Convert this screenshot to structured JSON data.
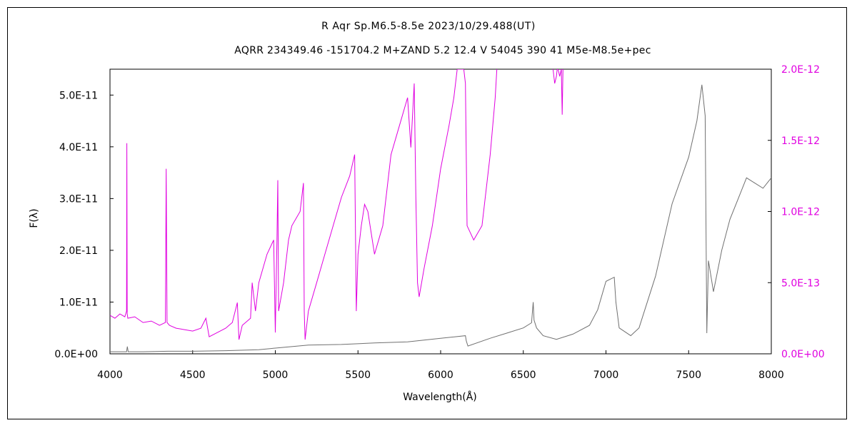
{
  "chart_data": {
    "type": "line",
    "title": "R Aqr  Sp.M6.5-8.5e  2023/10/29.488(UT)",
    "subtitle": "AQRR 234349.46 -151704.2 M+ZAND 5.2 12.4 V 54045 390 41 M5e-M8.5e+pec",
    "xlabel": "Wavelength(Å)",
    "ylabel": "F(λ)",
    "xlim": [
      4000,
      8000
    ],
    "ylim_left": [
      0,
      5.5e-11
    ],
    "ylim_right": [
      0,
      2e-12
    ],
    "xticks": [
      "4000",
      "4500",
      "5000",
      "5500",
      "6000",
      "6500",
      "7000",
      "7500",
      "8000"
    ],
    "yticks_left": [
      "0.0E+00",
      "1.0E-11",
      "2.0E-11",
      "3.0E-11",
      "4.0E-11",
      "5.0E-11"
    ],
    "yticks_right": [
      "0.0E+00",
      "5.0E-13",
      "1.0E-12",
      "1.5E-12",
      "2.0E-12"
    ],
    "grid": false,
    "colors": {
      "left_series": "#707070",
      "right_series": "#e000e0",
      "right_axis": "#e000e0"
    },
    "series": [
      {
        "axis": "left",
        "x": [
          4000,
          4100,
          4105,
          4110,
          4200,
          4350,
          4500,
          4700,
          4900,
          5000,
          5200,
          5400,
          5600,
          5800,
          6000,
          6150,
          6155,
          6165,
          6300,
          6400,
          6500,
          6550,
          6560,
          6565,
          6580,
          6620,
          6700,
          6800,
          6900,
          6950,
          7000,
          7050,
          7060,
          7080,
          7150,
          7200,
          7300,
          7400,
          7500,
          7550,
          7580,
          7600,
          7610,
          7620,
          7650,
          7700,
          7750,
          7800,
          7850,
          7900,
          7950,
          8000
        ],
        "y": [
          4e-13,
          4e-13,
          1.4e-12,
          4e-13,
          4e-13,
          5e-13,
          5e-13,
          6e-13,
          8e-13,
          1.1e-12,
          1.7e-12,
          1.8e-12,
          2.1e-12,
          2.3e-12,
          3e-12,
          3.5e-12,
          2.5e-12,
          1.5e-12,
          3e-12,
          4e-12,
          5e-12,
          6e-12,
          1e-11,
          6.5e-12,
          5e-12,
          3.5e-12,
          2.8e-12,
          3.8e-12,
          5.5e-12,
          8.5e-12,
          1.4e-11,
          1.48e-11,
          1e-11,
          5e-12,
          3.5e-12,
          5e-12,
          1.5e-11,
          2.9e-11,
          3.8e-11,
          4.5e-11,
          5.2e-11,
          4.6e-11,
          4e-12,
          1.8e-11,
          1.2e-11,
          2e-11,
          2.6e-11,
          3e-11,
          3.4e-11,
          3.3e-11,
          3.2e-11,
          3.4e-11
        ]
      },
      {
        "axis": "right",
        "x": [
          4000,
          4030,
          4060,
          4090,
          4100,
          4102,
          4104,
          4108,
          4150,
          4200,
          4250,
          4300,
          4335,
          4340,
          4345,
          4360,
          4400,
          4450,
          4500,
          4550,
          4580,
          4600,
          4650,
          4700,
          4740,
          4770,
          4780,
          4800,
          4850,
          4860,
          4880,
          4900,
          4950,
          4990,
          5000,
          5010,
          5015,
          5020,
          5050,
          5080,
          5100,
          5150,
          5170,
          5175,
          5180,
          5200,
          5250,
          5300,
          5350,
          5400,
          5450,
          5480,
          5490,
          5500,
          5520,
          5540,
          5560,
          5600,
          5650,
          5680,
          5700,
          5750,
          5800,
          5820,
          5840,
          5850,
          5860,
          5870,
          5900,
          5950,
          6000,
          6050,
          6080,
          6100,
          6120,
          6140,
          6150,
          6160,
          6200,
          6250,
          6300,
          6330,
          6340
        ],
        "y": [
          2.7e-13,
          2.5e-13,
          2.8e-13,
          2.6e-13,
          3e-13,
          1.48e-12,
          2.8e-13,
          2.5e-13,
          2.6e-13,
          2.2e-13,
          2.3e-13,
          2e-13,
          2.2e-13,
          1.3e-12,
          2.2e-13,
          2e-13,
          1.8e-13,
          1.7e-13,
          1.6e-13,
          1.8e-13,
          2.5e-13,
          1.2e-13,
          1.5e-13,
          1.8e-13,
          2.2e-13,
          3.6e-13,
          1e-13,
          2e-13,
          2.5e-13,
          5e-13,
          3e-13,
          5e-13,
          7e-13,
          8e-13,
          1.5e-13,
          8e-13,
          1.22e-12,
          3e-13,
          5e-13,
          8e-13,
          9e-13,
          1e-12,
          1.2e-12,
          3e-13,
          1e-13,
          3e-13,
          5e-13,
          7e-13,
          9e-13,
          1.1e-12,
          1.25e-12,
          1.4e-12,
          3e-13,
          7e-13,
          9e-13,
          1.05e-12,
          1e-12,
          7e-13,
          9e-13,
          1.2e-12,
          1.4e-12,
          1.6e-12,
          1.8e-12,
          1.45e-12,
          1.9e-12,
          1.1e-12,
          5e-13,
          4e-13,
          6e-13,
          9e-13,
          1.3e-12,
          1.6e-12,
          1.8e-12,
          2e-12,
          2e-12,
          2e-12,
          1.9e-12,
          9e-13,
          8e-13,
          9e-13,
          1.4e-12,
          1.8e-12,
          2e-12
        ]
      },
      {
        "axis": "right",
        "x": [
          6680,
          6690,
          6700,
          6705,
          6710,
          6720,
          6730,
          6735,
          6740
        ],
        "y": [
          2e-12,
          1.9e-12,
          1.95e-12,
          2e-12,
          2e-12,
          1.95e-12,
          2e-12,
          1.68e-12,
          2e-12
        ]
      }
    ]
  }
}
